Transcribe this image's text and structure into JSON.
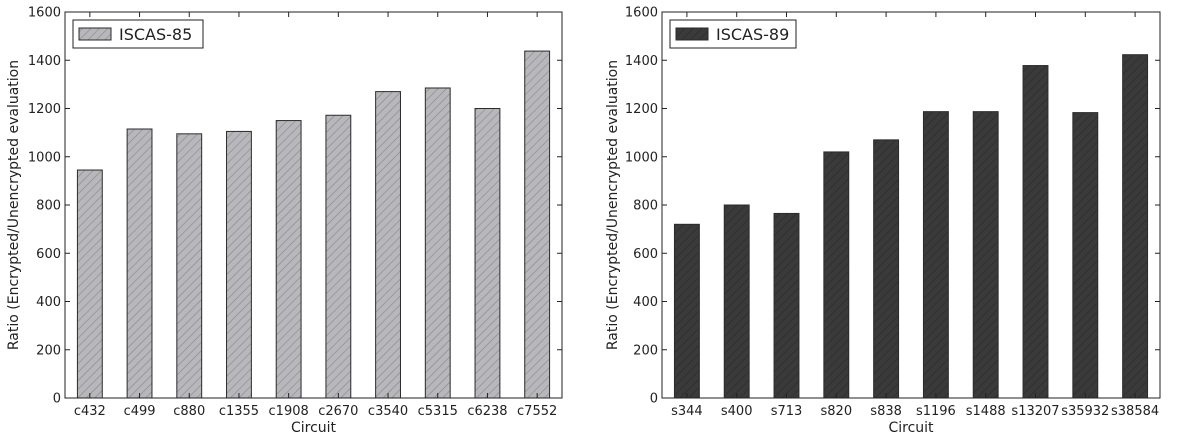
{
  "chart_data": [
    {
      "type": "bar",
      "title": "",
      "xlabel": "Circuit",
      "ylabel": "Ratio (Encrypted/Unencrypted evaluation",
      "ylim": [
        0,
        1600
      ],
      "yticks": [
        0,
        200,
        400,
        600,
        800,
        1000,
        1200,
        1400,
        1600
      ],
      "ytick_labels": [
        "0",
        "200",
        "400",
        "600",
        "800",
        "1000",
        "1200",
        "1400",
        "1600"
      ],
      "grid": false,
      "legend": "top-left",
      "categories": [
        "c432",
        "c499",
        "c880",
        "c1355",
        "c1908",
        "c2670",
        "c3540",
        "c5315",
        "c6238",
        "c7552"
      ],
      "series": [
        {
          "name": "ISCAS-85",
          "values": [
            945,
            1115,
            1095,
            1105,
            1150,
            1172,
            1270,
            1285,
            1200,
            1438
          ],
          "color": "#b8b8bc",
          "hatch_color": "#8a8a8e"
        }
      ]
    },
    {
      "type": "bar",
      "title": "",
      "xlabel": "Circuit",
      "ylabel": "Ratio (Encrypted/Unencrypted evaluation",
      "ylim": [
        0,
        1600
      ],
      "yticks": [
        0,
        200,
        400,
        600,
        800,
        1000,
        1200,
        1400,
        1600
      ],
      "ytick_labels": [
        "0",
        "200",
        "400",
        "600",
        "800",
        "1000",
        "1200",
        "1400",
        "1600"
      ],
      "grid": false,
      "legend": "top-left",
      "categories": [
        "s344",
        "s400",
        "s713",
        "s820",
        "s838",
        "s1196",
        "s1488",
        "s13207",
        "s35932",
        "s38584"
      ],
      "series": [
        {
          "name": "ISCAS-89",
          "values": [
            720,
            800,
            765,
            1020,
            1070,
            1187,
            1187,
            1378,
            1183,
            1423
          ],
          "color": "#3a3a3a",
          "hatch_color": "#2a2a2a"
        }
      ]
    }
  ]
}
